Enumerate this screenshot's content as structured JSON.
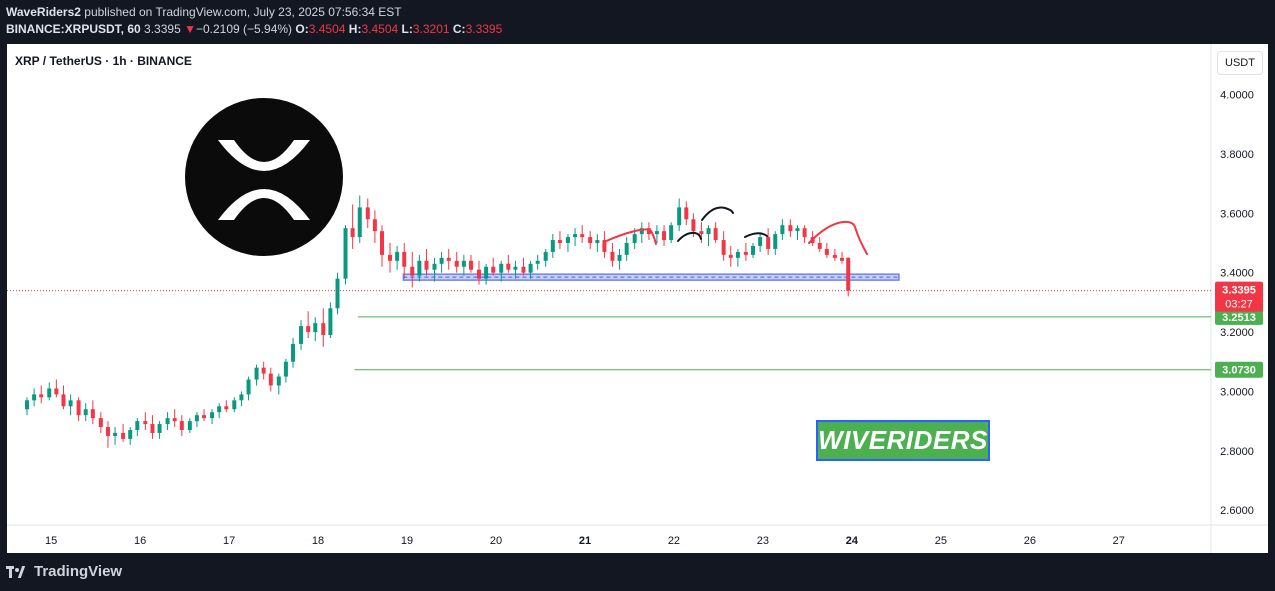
{
  "header": {
    "author": "WaveRiders2",
    "published_text": "published on TradingView.com, July 23, 2025 07:56:34 EST",
    "symbol_full": "BINANCE:XRPUSDT, 60",
    "price": "3.3395",
    "change_arrow": "▼",
    "change": "−0.2109 (−5.94%)",
    "o_label": "O:",
    "o_value": "3.4504",
    "h_label": "H:",
    "h_value": "3.4504",
    "l_label": "L:",
    "l_value": "3.3201",
    "c_label": "C:",
    "c_value": "3.3395"
  },
  "chart_title": "XRP / TetherUS · 1h · BINANCE",
  "currency_button": "USDT",
  "watermark_text": "WIVERIDERS",
  "footer_brand": "TradingView",
  "colors": {
    "up": "#089981",
    "down": "#f23645",
    "support_box": "#6e7ff3",
    "target_line": "#4caf50",
    "watermark_bg": "#4caf50",
    "watermark_border": "#2962ff",
    "background": "#131722",
    "panel": "#ffffff",
    "price_label": "#f23645"
  },
  "chart_data": {
    "type": "candlestick",
    "interval": "1h",
    "y_ticks": [
      4.0,
      3.8,
      3.6,
      3.4,
      3.2,
      3.0,
      2.8,
      2.6
    ],
    "y_tick_labels": [
      "4.0000",
      "3.8000",
      "3.6000",
      "3.4000",
      "3.2000",
      "3.0000",
      "2.8000",
      "2.6000"
    ],
    "ylim": [
      2.56,
      4.12
    ],
    "x_ticks": [
      15,
      16,
      17,
      18,
      19,
      20,
      21,
      22,
      23,
      24,
      25,
      26,
      27
    ],
    "x_tick_labels": [
      "15",
      "16",
      "17",
      "18",
      "19",
      "20",
      "21",
      "22",
      "23",
      "24",
      "25",
      "26",
      "27"
    ],
    "x_bold": [
      21,
      24
    ],
    "xlim": [
      14.65,
      27.98
    ],
    "current_price": {
      "value": 3.3395,
      "label": "3.3395",
      "countdown": "03:27"
    },
    "horizontal_levels": [
      {
        "value": 3.2513,
        "label": "3.2513",
        "x_start": 18.37
      },
      {
        "value": 3.073,
        "label": "3.0730",
        "x_start": 18.33
      }
    ],
    "support_zone": {
      "x_start": 18.97,
      "x_end": 24.45,
      "low": 3.375,
      "high": 3.395
    },
    "candles": [
      [
        14.65,
        2.94,
        2.98,
        2.92,
        2.97
      ],
      [
        14.73,
        2.97,
        3.01,
        2.95,
        2.99
      ],
      [
        14.81,
        2.99,
        3.02,
        2.96,
        2.98
      ],
      [
        14.9,
        2.98,
        3.03,
        2.97,
        3.01
      ],
      [
        14.98,
        3.01,
        3.04,
        2.98,
        2.99
      ],
      [
        15.06,
        2.99,
        3.02,
        2.94,
        2.95
      ],
      [
        15.14,
        2.95,
        2.99,
        2.92,
        2.97
      ],
      [
        15.23,
        2.97,
        2.98,
        2.9,
        2.92
      ],
      [
        15.31,
        2.92,
        2.96,
        2.9,
        2.94
      ],
      [
        15.39,
        2.94,
        2.97,
        2.89,
        2.91
      ],
      [
        15.48,
        2.91,
        2.93,
        2.86,
        2.88
      ],
      [
        15.56,
        2.88,
        2.9,
        2.81,
        2.85
      ],
      [
        15.64,
        2.85,
        2.88,
        2.82,
        2.86
      ],
      [
        15.73,
        2.86,
        2.89,
        2.83,
        2.84
      ],
      [
        15.81,
        2.84,
        2.88,
        2.82,
        2.87
      ],
      [
        15.89,
        2.87,
        2.91,
        2.85,
        2.9
      ],
      [
        15.98,
        2.9,
        2.93,
        2.87,
        2.89
      ],
      [
        16.06,
        2.89,
        2.92,
        2.84,
        2.86
      ],
      [
        16.14,
        2.86,
        2.9,
        2.84,
        2.89
      ],
      [
        16.23,
        2.89,
        2.93,
        2.87,
        2.91
      ],
      [
        16.31,
        2.91,
        2.94,
        2.88,
        2.9
      ],
      [
        16.39,
        2.9,
        2.92,
        2.85,
        2.87
      ],
      [
        16.48,
        2.87,
        2.91,
        2.86,
        2.9
      ],
      [
        16.56,
        2.9,
        2.93,
        2.88,
        2.92
      ],
      [
        16.64,
        2.92,
        2.94,
        2.9,
        2.91
      ],
      [
        16.73,
        2.91,
        2.94,
        2.89,
        2.93
      ],
      [
        16.81,
        2.93,
        2.96,
        2.91,
        2.95
      ],
      [
        16.89,
        2.95,
        2.97,
        2.93,
        2.94
      ],
      [
        16.98,
        2.94,
        2.98,
        2.93,
        2.97
      ],
      [
        17.06,
        2.97,
        3.0,
        2.95,
        2.99
      ],
      [
        17.14,
        2.99,
        3.05,
        2.97,
        3.04
      ],
      [
        17.23,
        3.04,
        3.09,
        3.02,
        3.08
      ],
      [
        17.31,
        3.08,
        3.1,
        3.04,
        3.06
      ],
      [
        17.39,
        3.06,
        3.08,
        3.0,
        3.02
      ],
      [
        17.48,
        3.02,
        3.06,
        2.99,
        3.05
      ],
      [
        17.56,
        3.05,
        3.11,
        3.03,
        3.1
      ],
      [
        17.64,
        3.1,
        3.18,
        3.08,
        3.16
      ],
      [
        17.73,
        3.16,
        3.24,
        3.14,
        3.22
      ],
      [
        17.81,
        3.22,
        3.27,
        3.18,
        3.2
      ],
      [
        17.89,
        3.2,
        3.25,
        3.17,
        3.23
      ],
      [
        17.98,
        3.23,
        3.28,
        3.15,
        3.19
      ],
      [
        18.06,
        3.19,
        3.3,
        3.18,
        3.28
      ],
      [
        18.14,
        3.28,
        3.4,
        3.26,
        3.38
      ],
      [
        18.23,
        3.38,
        3.56,
        3.36,
        3.55
      ],
      [
        18.31,
        3.55,
        3.63,
        3.48,
        3.52
      ],
      [
        18.39,
        3.52,
        3.66,
        3.5,
        3.62
      ],
      [
        18.48,
        3.62,
        3.65,
        3.55,
        3.58
      ],
      [
        18.56,
        3.58,
        3.61,
        3.5,
        3.54
      ],
      [
        18.64,
        3.54,
        3.56,
        3.42,
        3.46
      ],
      [
        18.73,
        3.46,
        3.5,
        3.4,
        3.44
      ],
      [
        18.81,
        3.44,
        3.49,
        3.41,
        3.47
      ],
      [
        18.89,
        3.47,
        3.5,
        3.38,
        3.42
      ],
      [
        18.98,
        3.42,
        3.47,
        3.35,
        3.39
      ],
      [
        19.06,
        3.39,
        3.46,
        3.37,
        3.44
      ],
      [
        19.14,
        3.44,
        3.48,
        3.39,
        3.41
      ],
      [
        19.23,
        3.41,
        3.45,
        3.37,
        3.43
      ],
      [
        19.31,
        3.43,
        3.47,
        3.4,
        3.45
      ],
      [
        19.39,
        3.45,
        3.48,
        3.41,
        3.44
      ],
      [
        19.48,
        3.44,
        3.47,
        3.4,
        3.42
      ],
      [
        19.56,
        3.42,
        3.46,
        3.39,
        3.44
      ],
      [
        19.64,
        3.44,
        3.46,
        3.4,
        3.41
      ],
      [
        19.73,
        3.41,
        3.44,
        3.36,
        3.38
      ],
      [
        19.81,
        3.38,
        3.43,
        3.36,
        3.42
      ],
      [
        19.89,
        3.42,
        3.45,
        3.39,
        3.4
      ],
      [
        19.98,
        3.4,
        3.44,
        3.37,
        3.43
      ],
      [
        20.06,
        3.43,
        3.46,
        3.4,
        3.41
      ],
      [
        20.14,
        3.41,
        3.44,
        3.38,
        3.42
      ],
      [
        20.23,
        3.42,
        3.45,
        3.39,
        3.4
      ],
      [
        20.31,
        3.4,
        3.44,
        3.38,
        3.43
      ],
      [
        20.39,
        3.43,
        3.46,
        3.41,
        3.44
      ],
      [
        20.48,
        3.44,
        3.48,
        3.42,
        3.47
      ],
      [
        20.56,
        3.47,
        3.53,
        3.45,
        3.51
      ],
      [
        20.64,
        3.51,
        3.54,
        3.48,
        3.5
      ],
      [
        20.73,
        3.5,
        3.53,
        3.47,
        3.52
      ],
      [
        20.81,
        3.52,
        3.55,
        3.49,
        3.53
      ],
      [
        20.89,
        3.53,
        3.56,
        3.5,
        3.52
      ],
      [
        20.98,
        3.52,
        3.54,
        3.48,
        3.5
      ],
      [
        21.06,
        3.5,
        3.53,
        3.47,
        3.51
      ],
      [
        21.14,
        3.51,
        3.54,
        3.45,
        3.47
      ],
      [
        21.23,
        3.47,
        3.5,
        3.42,
        3.44
      ],
      [
        21.31,
        3.44,
        3.48,
        3.41,
        3.46
      ],
      [
        21.39,
        3.46,
        3.52,
        3.44,
        3.5
      ],
      [
        21.48,
        3.5,
        3.55,
        3.48,
        3.53
      ],
      [
        21.56,
        3.53,
        3.57,
        3.5,
        3.55
      ],
      [
        21.64,
        3.55,
        3.57,
        3.51,
        3.53
      ],
      [
        21.73,
        3.53,
        3.56,
        3.5,
        3.54
      ],
      [
        21.81,
        3.54,
        3.56,
        3.49,
        3.51
      ],
      [
        21.89,
        3.51,
        3.57,
        3.5,
        3.56
      ],
      [
        21.98,
        3.56,
        3.65,
        3.54,
        3.62
      ],
      [
        22.06,
        3.62,
        3.64,
        3.56,
        3.58
      ],
      [
        22.14,
        3.58,
        3.6,
        3.52,
        3.54
      ],
      [
        22.23,
        3.54,
        3.57,
        3.5,
        3.53
      ],
      [
        22.31,
        3.53,
        3.56,
        3.49,
        3.55
      ],
      [
        22.39,
        3.55,
        3.57,
        3.5,
        3.51
      ],
      [
        22.48,
        3.51,
        3.54,
        3.44,
        3.46
      ],
      [
        22.56,
        3.46,
        3.49,
        3.42,
        3.45
      ],
      [
        22.64,
        3.45,
        3.48,
        3.42,
        3.47
      ],
      [
        22.73,
        3.47,
        3.5,
        3.44,
        3.46
      ],
      [
        22.81,
        3.46,
        3.5,
        3.45,
        3.49
      ],
      [
        22.89,
        3.49,
        3.53,
        3.47,
        3.52
      ],
      [
        22.98,
        3.52,
        3.55,
        3.46,
        3.48
      ],
      [
        23.06,
        3.48,
        3.54,
        3.46,
        3.53
      ],
      [
        23.14,
        3.53,
        3.58,
        3.51,
        3.56
      ],
      [
        23.23,
        3.56,
        3.58,
        3.52,
        3.54
      ],
      [
        23.31,
        3.54,
        3.56,
        3.51,
        3.55
      ],
      [
        23.39,
        3.55,
        3.56,
        3.5,
        3.52
      ],
      [
        23.48,
        3.52,
        3.54,
        3.49,
        3.5
      ],
      [
        23.56,
        3.5,
        3.52,
        3.47,
        3.48
      ],
      [
        23.64,
        3.48,
        3.5,
        3.45,
        3.46
      ],
      [
        23.73,
        3.46,
        3.48,
        3.44,
        3.45
      ],
      [
        23.81,
        3.45,
        3.47,
        3.43,
        3.44
      ],
      [
        23.88,
        3.4504,
        3.4504,
        3.3201,
        3.3395
      ]
    ]
  }
}
